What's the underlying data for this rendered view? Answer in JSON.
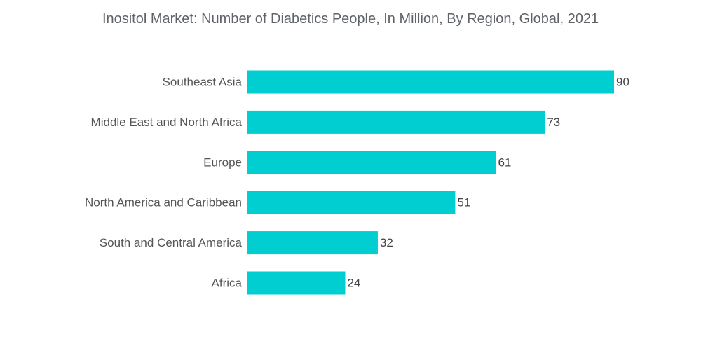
{
  "chart_data": {
    "type": "bar",
    "orientation": "horizontal",
    "title": "Inositol Market: Number of Diabetics People, In Million, By Region, Global, 2021",
    "categories": [
      "Southeast Asia",
      "Middle East and North Africa",
      "Europe",
      "North America and Caribbean",
      "South and Central America",
      "Africa"
    ],
    "values": [
      90,
      73,
      61,
      51,
      32,
      24
    ],
    "xlim": [
      0,
      90
    ],
    "grid": false,
    "legend": "none",
    "bar_color": "#00CED1"
  }
}
